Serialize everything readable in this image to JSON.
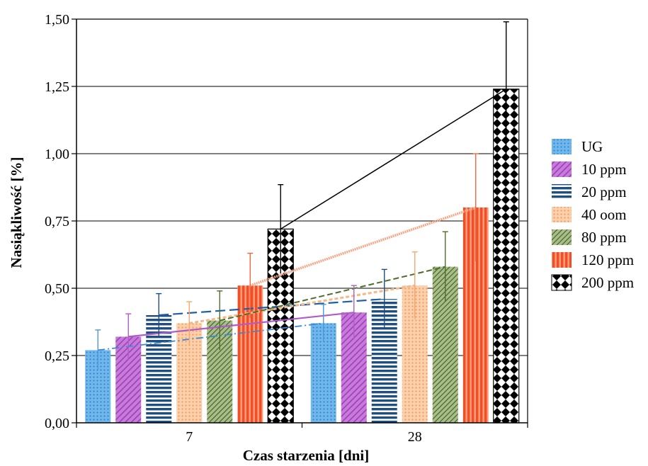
{
  "chart_data": {
    "type": "bar",
    "xlabel": "Czas starzenia [dni]",
    "ylabel": "Nasiąkliwość [%]",
    "categories": [
      "7",
      "28"
    ],
    "ylim": [
      0,
      1.5
    ],
    "yticks": [
      "0,00",
      "0,25",
      "0,50",
      "0,75",
      "1,00",
      "1,25",
      "1,50"
    ],
    "grid": true,
    "legend_position": "right",
    "series": [
      {
        "name": "UG",
        "values": [
          0.27,
          0.37
        ],
        "errors": [
          0.075,
          0.07
        ],
        "color": "#4a9ad8",
        "pattern": "dots"
      },
      {
        "name": "10 ppm",
        "values": [
          0.32,
          0.41
        ],
        "errors": [
          0.085,
          0.1
        ],
        "color": "#b05cc8",
        "pattern": "diag"
      },
      {
        "name": "20 ppm",
        "values": [
          0.4,
          0.46
        ],
        "errors": [
          0.08,
          0.11
        ],
        "color": "#1f4e80",
        "pattern": "hlines"
      },
      {
        "name": "40 oom",
        "values": [
          0.37,
          0.51
        ],
        "errors": [
          0.08,
          0.125
        ],
        "color": "#f4a96e",
        "pattern": "dots"
      },
      {
        "name": "80 ppm",
        "values": [
          0.38,
          0.58
        ],
        "errors": [
          0.11,
          0.13
        ],
        "color": "#4e6e2a",
        "pattern": "cross"
      },
      {
        "name": "120 ppm",
        "values": [
          0.51,
          0.8
        ],
        "errors": [
          0.12,
          0.2
        ],
        "color": "#f26540",
        "pattern": "vlines"
      },
      {
        "name": "200 ppm",
        "values": [
          0.72,
          1.24
        ],
        "errors": [
          0.165,
          0.25
        ],
        "color": "#000000",
        "pattern": "checker"
      }
    ]
  }
}
